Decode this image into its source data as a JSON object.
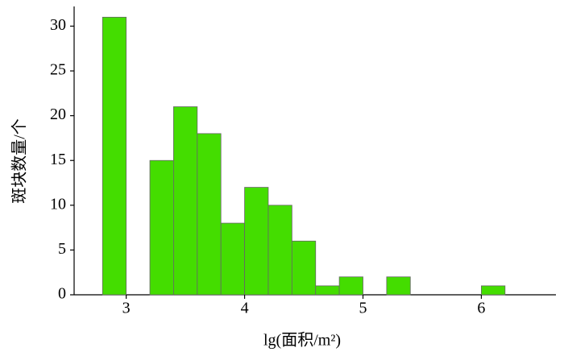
{
  "chart_data": {
    "type": "histogram",
    "xlabel": "lg(面积/m²)",
    "ylabel": "斑块数量/个",
    "bins": [
      2.8,
      3.0,
      3.2,
      3.4,
      3.6,
      3.8,
      4.0,
      4.2,
      4.4,
      4.6,
      4.8,
      5.0,
      5.2,
      5.4,
      5.6,
      5.8,
      6.0,
      6.2
    ],
    "values": [
      31,
      0,
      15,
      21,
      18,
      8,
      12,
      10,
      6,
      1,
      2,
      0,
      2,
      0,
      0,
      0,
      1
    ],
    "color": "#44dd00",
    "xlim": [
      2.56,
      6.63
    ],
    "xticks": [
      3,
      4,
      5,
      6
    ],
    "ylim": [
      0,
      32.2
    ],
    "yticks": [
      0,
      5,
      10,
      15,
      20,
      25,
      30
    ]
  }
}
